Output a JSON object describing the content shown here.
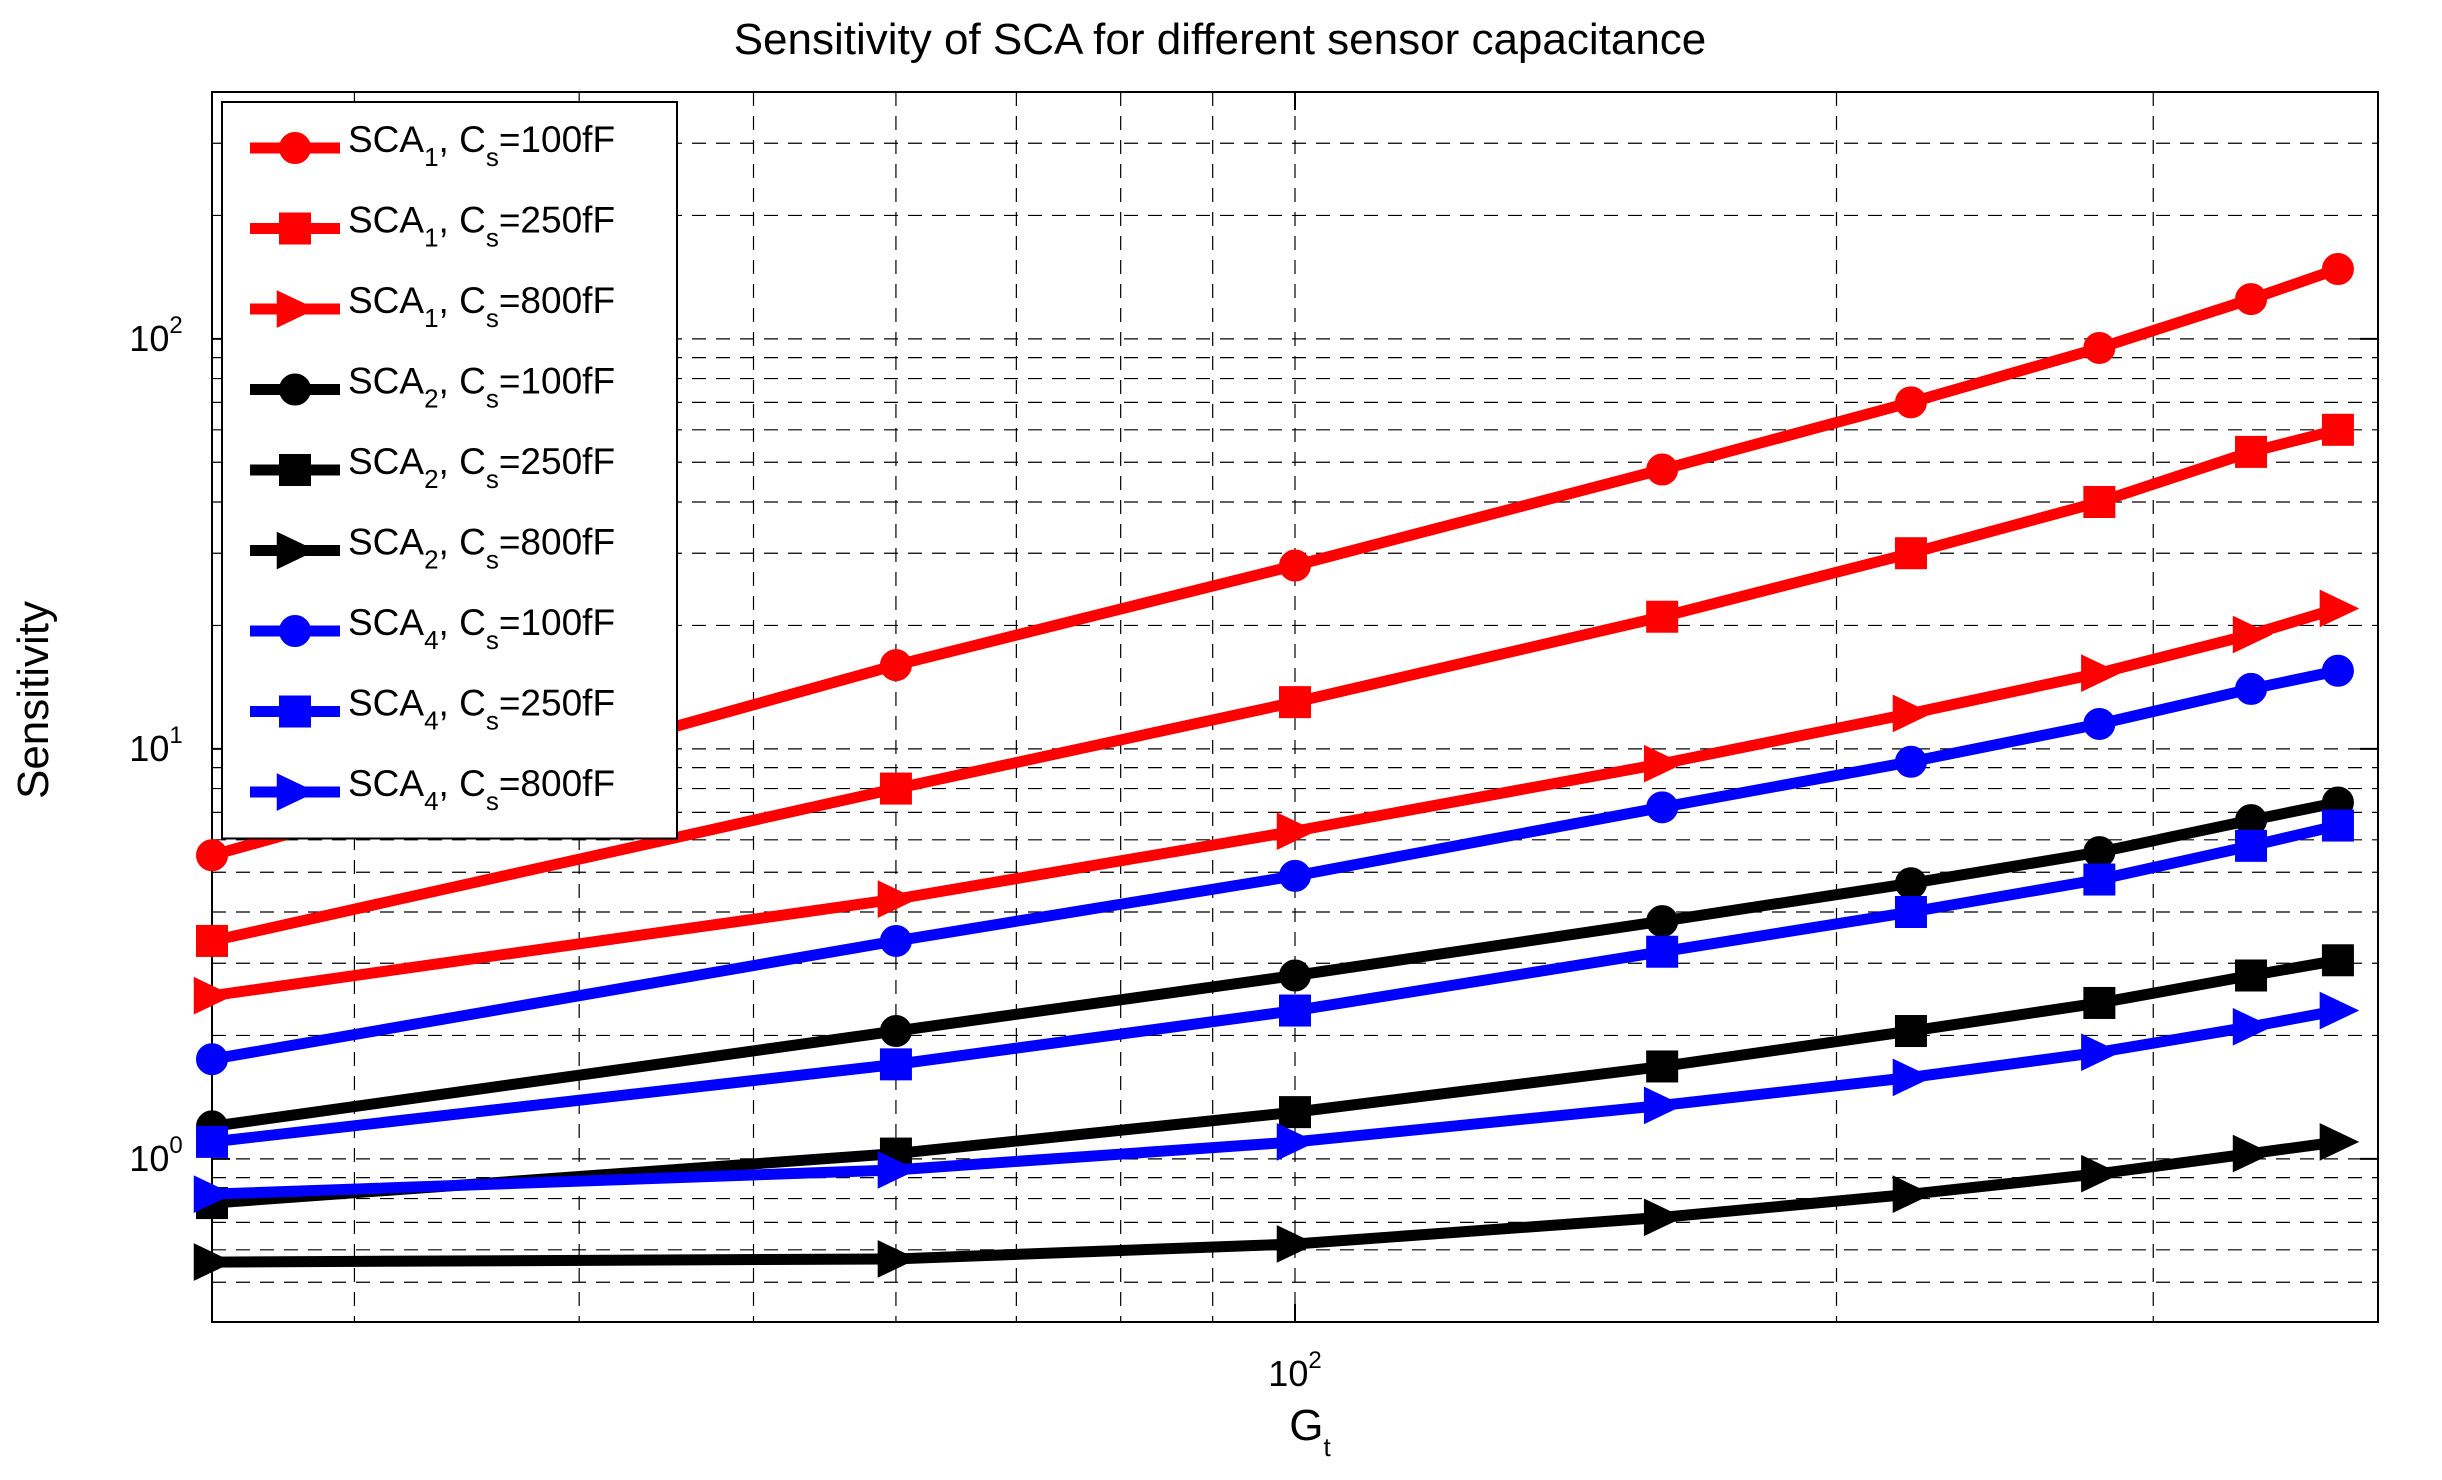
{
  "chart_data": {
    "type": "line",
    "title": "Sensitivity of SCA for different sensor capacitance",
    "xlabel": {
      "base": "G",
      "sub": "t"
    },
    "ylabel": "Sensitivity",
    "xscale": "log",
    "yscale": "log",
    "xlim": [
      25,
      400
    ],
    "ylim": [
      0.4,
      400
    ],
    "grid": true,
    "x_ticks": [
      {
        "value": 100,
        "base": "10",
        "exp": "2"
      }
    ],
    "y_ticks": [
      {
        "value": 1,
        "base": "10",
        "exp": "0"
      },
      {
        "value": 10,
        "base": "10",
        "exp": "1"
      },
      {
        "value": 100,
        "base": "10",
        "exp": "2"
      }
    ],
    "legend_position": "top-left",
    "x": [
      25,
      60,
      100,
      160,
      220,
      280,
      340,
      380
    ],
    "series": [
      {
        "name": "SCA1, Cs=100fF",
        "sca": "SCA",
        "sca_sub": "1",
        "cs": ", C",
        "cs_sub": "s",
        "cs_value": "=100fF",
        "color": "#ff0000",
        "marker": "circle",
        "values": [
          5.5,
          16,
          28,
          48,
          70,
          95,
          125,
          148
        ]
      },
      {
        "name": "SCA1, Cs=250fF",
        "sca": "SCA",
        "sca_sub": "1",
        "cs": ", C",
        "cs_sub": "s",
        "cs_value": "=250fF",
        "color": "#ff0000",
        "marker": "square",
        "values": [
          3.4,
          8,
          13,
          21,
          30,
          40,
          53,
          60
        ]
      },
      {
        "name": "SCA1, Cs=800fF",
        "sca": "SCA",
        "sca_sub": "1",
        "cs": ", C",
        "cs_sub": "s",
        "cs_value": "=800fF",
        "color": "#ff0000",
        "marker": "triangle-right",
        "values": [
          2.5,
          4.3,
          6.3,
          9.2,
          12.2,
          15.3,
          19,
          22
        ]
      },
      {
        "name": "SCA2, Cs=100fF",
        "sca": "SCA",
        "sca_sub": "2",
        "cs": ", C",
        "cs_sub": "s",
        "cs_value": "=100fF",
        "color": "#000000",
        "marker": "circle",
        "values": [
          1.2,
          2.05,
          2.8,
          3.8,
          4.7,
          5.6,
          6.7,
          7.4
        ]
      },
      {
        "name": "SCA2, Cs=250fF",
        "sca": "SCA",
        "sca_sub": "2",
        "cs": ", C",
        "cs_sub": "s",
        "cs_value": "=250fF",
        "color": "#000000",
        "marker": "square",
        "values": [
          0.78,
          1.03,
          1.3,
          1.68,
          2.05,
          2.4,
          2.8,
          3.05
        ]
      },
      {
        "name": "SCA2, Cs=800fF",
        "sca": "SCA",
        "sca_sub": "2",
        "cs": ", C",
        "cs_sub": "s",
        "cs_value": "=800fF",
        "color": "#000000",
        "marker": "triangle-right",
        "values": [
          0.56,
          0.57,
          0.62,
          0.72,
          0.82,
          0.92,
          1.03,
          1.1
        ]
      },
      {
        "name": "SCA4, Cs=100fF",
        "sca": "SCA",
        "sca_sub": "4",
        "cs": ", C",
        "cs_sub": "s",
        "cs_value": "=100fF",
        "color": "#0000ff",
        "marker": "circle",
        "values": [
          1.75,
          3.4,
          4.9,
          7.2,
          9.3,
          11.5,
          14,
          15.5
        ]
      },
      {
        "name": "SCA4, Cs=250fF",
        "sca": "SCA",
        "sca_sub": "4",
        "cs": ", C",
        "cs_sub": "s",
        "cs_value": "=250fF",
        "color": "#0000ff",
        "marker": "square",
        "values": [
          1.1,
          1.7,
          2.3,
          3.2,
          4.0,
          4.8,
          5.8,
          6.5
        ]
      },
      {
        "name": "SCA4, Cs=800fF",
        "sca": "SCA",
        "sca_sub": "4",
        "cs": ", C",
        "cs_sub": "s",
        "cs_value": "=800fF",
        "color": "#0000ff",
        "marker": "triangle-right",
        "values": [
          0.82,
          0.94,
          1.1,
          1.35,
          1.58,
          1.82,
          2.1,
          2.3
        ]
      }
    ]
  }
}
